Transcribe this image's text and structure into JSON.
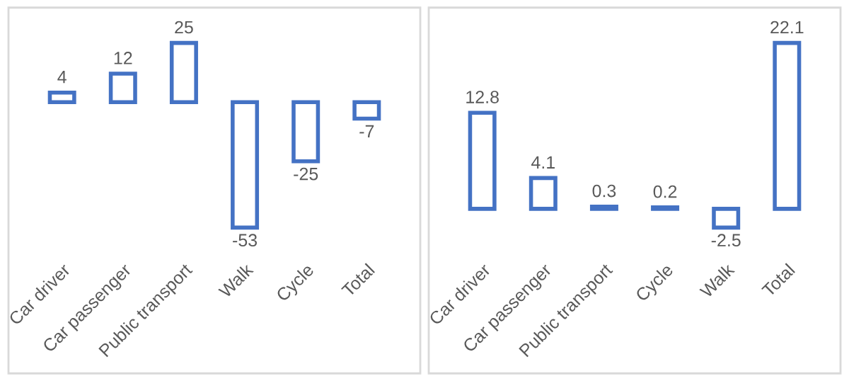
{
  "chart_data": [
    {
      "type": "bar",
      "categories": [
        "Car driver",
        "Car passenger",
        "Public transport",
        "Walk",
        "Cycle",
        "Total"
      ],
      "values": [
        4,
        12,
        25,
        -53,
        -25,
        -7
      ],
      "color": "#4472c4",
      "data_labels": true
    },
    {
      "type": "bar",
      "categories": [
        "Car driver",
        "Car passenger",
        "Public transport",
        "Cycle",
        "Walk",
        "Total"
      ],
      "values": [
        12.8,
        4.1,
        0.3,
        0.2,
        -2.5,
        22.1
      ],
      "color": "#4472c4",
      "data_labels": true
    }
  ]
}
